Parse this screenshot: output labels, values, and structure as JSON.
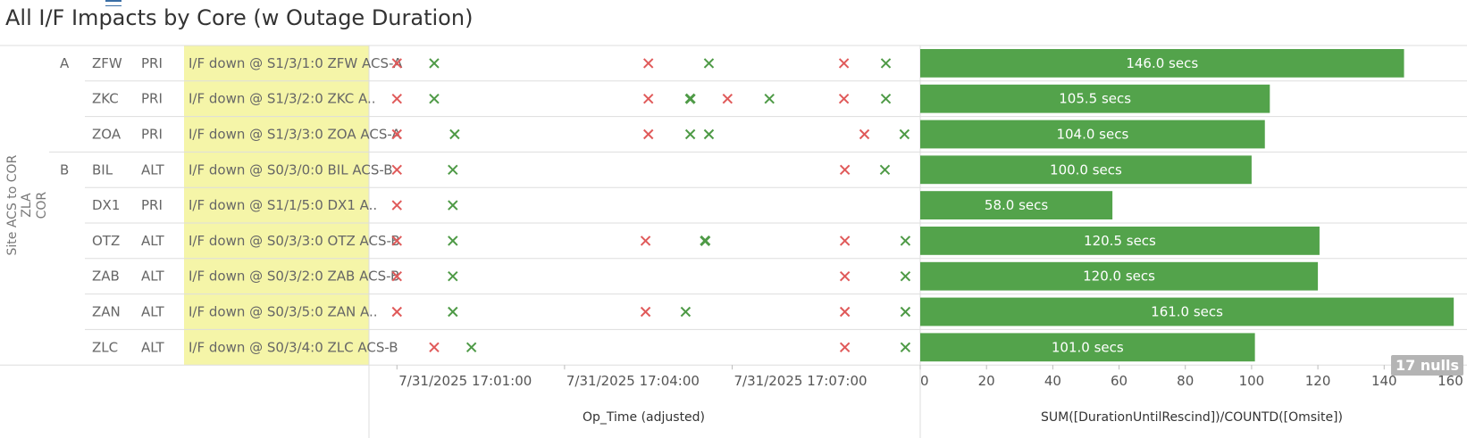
{
  "title": "All I/F Impacts by Core (w Outage Duration)",
  "colors": {
    "down_marker": "#e05a5a",
    "up_marker": "#4e9a46",
    "bar": "#53a34b",
    "highlight_cell": "#f5f5a8",
    "grid": "#dddddd"
  },
  "nulls_badge": "17 nulls",
  "row_axis_label": [
    "Site ACS to COR",
    "ZLA",
    "COR"
  ],
  "chart_data": [
    {
      "type": "scatter",
      "xlabel": "Op_Time (adjusted)",
      "x_ticks": [
        "7/31/2025 17:01:00",
        "7/31/2025 17:04:00",
        "7/31/2025 17:07:00"
      ],
      "x_tick_times": [
        "17:01:00",
        "17:04:00",
        "17:07:00"
      ],
      "xlim": [
        "17:00:30",
        "17:10:20"
      ],
      "marker_legend": {
        "x_red": "down",
        "x_green": "up"
      },
      "rows": [
        {
          "group": "A",
          "site": "ZFW",
          "type": "PRI",
          "event": "I/F down @ S1/3/1:0 ZFW ACS-A",
          "marks": [
            [
              "17:01:00",
              "down"
            ],
            [
              "17:01:40",
              "up"
            ],
            [
              "17:05:30",
              "down"
            ],
            [
              "17:06:35",
              "up"
            ],
            [
              "17:09:00",
              "down"
            ],
            [
              "17:09:45",
              "up"
            ]
          ]
        },
        {
          "group": "",
          "site": "ZKC",
          "type": "PRI",
          "event": "I/F down @ S1/3/2:0 ZKC A..",
          "marks": [
            [
              "17:01:00",
              "down"
            ],
            [
              "17:01:40",
              "up"
            ],
            [
              "17:05:30",
              "down"
            ],
            [
              "17:06:15",
              "up-bold"
            ],
            [
              "17:06:55",
              "down"
            ],
            [
              "17:07:40",
              "up"
            ],
            [
              "17:09:00",
              "down"
            ],
            [
              "17:09:45",
              "up"
            ]
          ]
        },
        {
          "group": "",
          "site": "ZOA",
          "type": "PRI",
          "event": "I/F down @ S1/3/3:0 ZOA ACS-A",
          "marks": [
            [
              "17:01:00",
              "down"
            ],
            [
              "17:02:02",
              "up"
            ],
            [
              "17:05:30",
              "down"
            ],
            [
              "17:06:15",
              "up"
            ],
            [
              "17:06:35",
              "up"
            ],
            [
              "17:09:22",
              "down"
            ],
            [
              "17:10:05",
              "up"
            ]
          ]
        },
        {
          "group": "B",
          "site": "BIL",
          "type": "ALT",
          "event": "I/F down @ S0/3/0:0 BIL ACS-B",
          "marks": [
            [
              "17:01:00",
              "down"
            ],
            [
              "17:02:00",
              "up"
            ],
            [
              "17:09:01",
              "down"
            ],
            [
              "17:09:44",
              "up"
            ]
          ]
        },
        {
          "group": "",
          "site": "DX1",
          "type": "PRI",
          "event": "I/F down @ S1/1/5:0 DX1 A..",
          "marks": [
            [
              "17:01:00",
              "down"
            ],
            [
              "17:02:00",
              "up"
            ]
          ]
        },
        {
          "group": "",
          "site": "OTZ",
          "type": "ALT",
          "event": "I/F down @ S0/3/3:0 OTZ ACS-B",
          "marks": [
            [
              "17:01:00",
              "down"
            ],
            [
              "17:02:00",
              "up"
            ],
            [
              "17:05:27",
              "down"
            ],
            [
              "17:06:31",
              "up-bold"
            ],
            [
              "17:09:01",
              "down"
            ],
            [
              "17:10:06",
              "up"
            ]
          ]
        },
        {
          "group": "",
          "site": "ZAB",
          "type": "ALT",
          "event": "I/F down @ S0/3/2:0 ZAB ACS-B",
          "marks": [
            [
              "17:01:00",
              "down"
            ],
            [
              "17:02:00",
              "up"
            ],
            [
              "17:09:01",
              "down"
            ],
            [
              "17:10:06",
              "up"
            ]
          ]
        },
        {
          "group": "",
          "site": "ZAN",
          "type": "ALT",
          "event": "I/F down @ S0/3/5:0 ZAN A..",
          "marks": [
            [
              "17:01:00",
              "down"
            ],
            [
              "17:02:00",
              "up"
            ],
            [
              "17:05:27",
              "down"
            ],
            [
              "17:06:10",
              "up"
            ],
            [
              "17:09:01",
              "down"
            ],
            [
              "17:10:06",
              "up"
            ]
          ]
        },
        {
          "group": "",
          "site": "ZLC",
          "type": "ALT",
          "event": "I/F down @ S0/3/4:0 ZLC ACS-B",
          "marks": [
            [
              "17:01:40",
              "down"
            ],
            [
              "17:02:20",
              "up"
            ],
            [
              "17:09:01",
              "down"
            ],
            [
              "17:10:06",
              "up"
            ]
          ]
        }
      ]
    },
    {
      "type": "bar",
      "orientation": "horizontal",
      "xlabel": "SUM([DurationUntilRescind])/COUNTD([Omsite])",
      "xlim": [
        0,
        165
      ],
      "x_ticks": [
        0,
        20,
        40,
        60,
        80,
        100,
        120,
        140,
        160
      ],
      "categories": [
        "ZFW",
        "ZKC",
        "ZOA",
        "BIL",
        "DX1",
        "OTZ",
        "ZAB",
        "ZAN",
        "ZLC"
      ],
      "values": [
        146.0,
        105.5,
        104.0,
        100.0,
        58.0,
        120.5,
        120.0,
        161.0,
        101.0
      ],
      "data_labels": [
        "146.0 secs",
        "105.5 secs",
        "104.0 secs",
        "100.0 secs",
        "58.0 secs",
        "120.5 secs",
        "120.0 secs",
        "161.0 secs",
        "101.0 secs"
      ]
    }
  ]
}
